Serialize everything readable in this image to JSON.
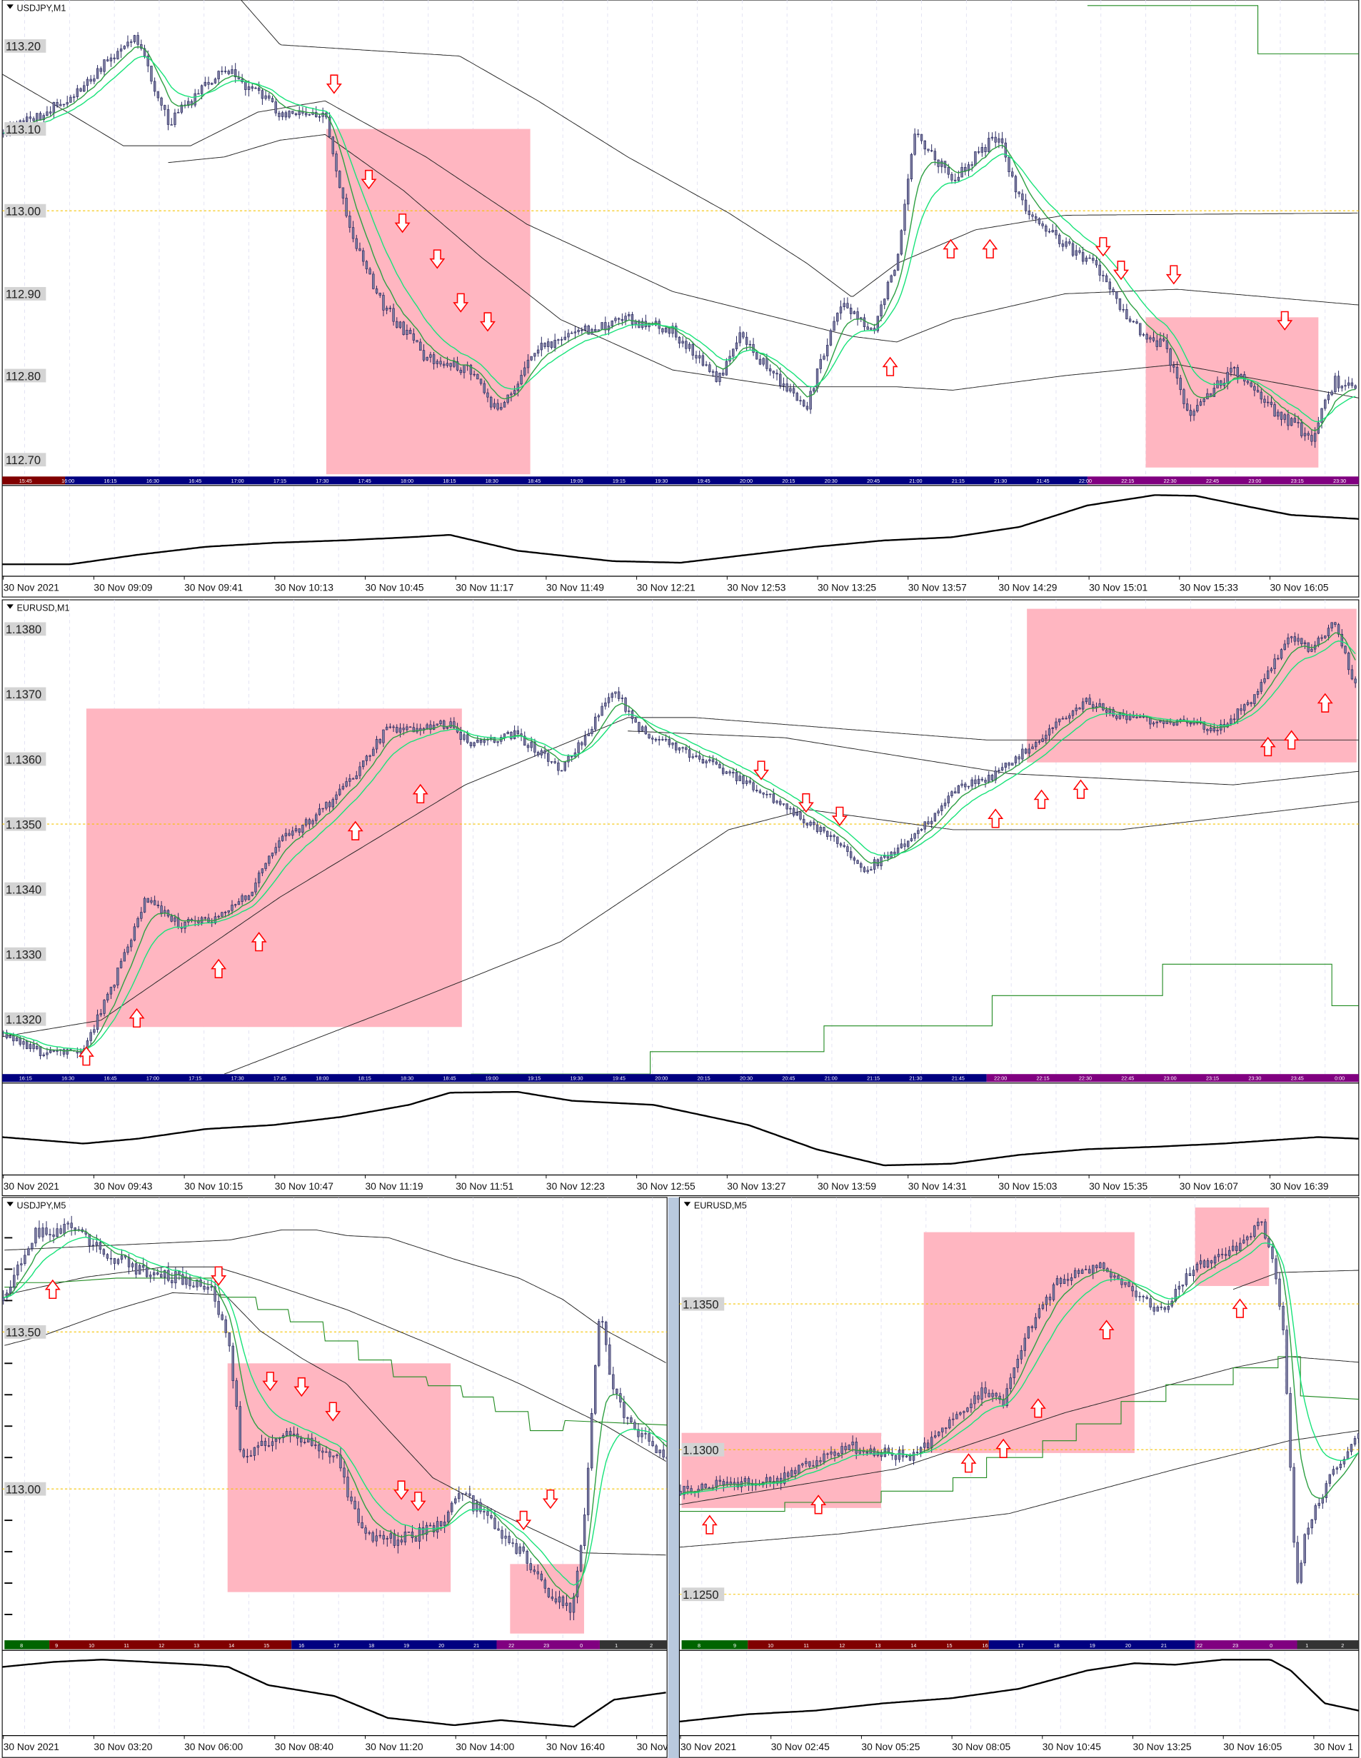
{
  "panels": [
    {
      "title": "USDJPY,M1",
      "price_labels": [
        "113.20",
        "113.10",
        "113.00",
        "112.90",
        "112.80",
        "112.70"
      ],
      "session_labels": [
        "15:45",
        "16:00",
        "16:15",
        "16:30",
        "16:45",
        "17:00",
        "17:15",
        "17:30",
        "17:45",
        "18:00",
        "18:15",
        "18:30",
        "18:45",
        "19:00",
        "19:15",
        "19:30",
        "19:45",
        "20:00",
        "20:15",
        "20:30",
        "20:45",
        "21:00",
        "21:15",
        "21:30",
        "21:45",
        "22:00",
        "22:15",
        "22:30",
        "22:45",
        "23:00",
        "23:15",
        "23:30"
      ],
      "time_labels": [
        "30 Nov 2021",
        "30 Nov 09:09",
        "30 Nov 09:41",
        "30 Nov 10:13",
        "30 Nov 10:45",
        "30 Nov 11:17",
        "30 Nov 11:49",
        "30 Nov 12:21",
        "30 Nov 12:53",
        "30 Nov 13:25",
        "30 Nov 13:57",
        "30 Nov 14:29",
        "30 Nov 15:01",
        "30 Nov 15:33",
        "30 Nov 16:05"
      ]
    },
    {
      "title": "EURUSD,M1",
      "price_labels": [
        "1.1380",
        "1.1370",
        "1.1360",
        "1.1350",
        "1.1340",
        "1.1330",
        "1.1320"
      ],
      "session_labels": [
        "16:15",
        "16:30",
        "16:45",
        "17:00",
        "17:15",
        "17:30",
        "17:45",
        "18:00",
        "18:15",
        "18:30",
        "18:45",
        "19:00",
        "19:15",
        "19:30",
        "19:45",
        "20:00",
        "20:15",
        "20:30",
        "20:45",
        "21:00",
        "21:15",
        "21:30",
        "21:45",
        "22:00",
        "22:15",
        "22:30",
        "22:45",
        "23:00",
        "23:15",
        "23:30",
        "23:45",
        "0:00"
      ],
      "time_labels": [
        "30 Nov 2021",
        "30 Nov 09:43",
        "30 Nov 10:15",
        "30 Nov 10:47",
        "30 Nov 11:19",
        "30 Nov 11:51",
        "30 Nov 12:23",
        "30 Nov 12:55",
        "30 Nov 13:27",
        "30 Nov 13:59",
        "30 Nov 14:31",
        "30 Nov 15:03",
        "30 Nov 15:35",
        "30 Nov 16:07",
        "30 Nov 16:39"
      ]
    },
    {
      "title": "USDJPY,M5",
      "price_labels": [
        "113.50",
        "113.00"
      ],
      "session_labels": [
        "8",
        "9",
        "10",
        "11",
        "12",
        "13",
        "14",
        "15",
        "16",
        "17",
        "18",
        "19",
        "20",
        "21",
        "22",
        "23",
        "0",
        "1",
        "2"
      ],
      "time_labels": [
        "30 Nov 2021",
        "30 Nov 03:20",
        "30 Nov 06:00",
        "30 Nov 08:40",
        "30 Nov 11:20",
        "30 Nov 14:00",
        "30 Nov 16:40",
        "30 Nov"
      ]
    },
    {
      "title": "EURUSD,M5",
      "price_labels": [
        "1.1350",
        "1.1300",
        "1.1250"
      ],
      "session_labels": [
        "8",
        "9",
        "10",
        "11",
        "12",
        "13",
        "14",
        "15",
        "16",
        "17",
        "18",
        "19",
        "20",
        "21",
        "22",
        "23",
        "0",
        "1",
        "2"
      ],
      "time_labels": [
        "30 Nov 2021",
        "30 Nov 02:45",
        "30 Nov 05:25",
        "30 Nov 08:05",
        "30 Nov 10:45",
        "30 Nov 13:25",
        "30 Nov 16:05",
        "30 Nov 1"
      ]
    }
  ],
  "colors": {
    "candle_outline": "#1b1b55",
    "candle_body": "#7b7ba0",
    "ma_fast": "#2ea043",
    "ma_slow": "#19e37a",
    "envelope": "#222222",
    "step_line": "#1f8a1f",
    "zone": "#ffb6c1",
    "arrow": "#ff0000",
    "level_line": "#f5c400",
    "session_asia": "#006400",
    "session_europe": "#800000",
    "session_us": "#000080",
    "session_late": "#800080",
    "session_close": "#333333"
  }
}
